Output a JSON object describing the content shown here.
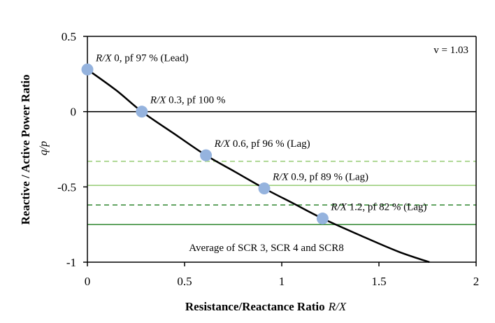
{
  "chart_data": {
    "type": "scatter",
    "xlabel": "Resistance/Reactance Ratio",
    "xlabel_var": "R/X",
    "ylabel": "Reactive / Active Power Ratio",
    "ylabel_var": "q/p",
    "xlim": [
      0,
      2
    ],
    "ylim": [
      -1,
      0.5
    ],
    "x_ticks": [
      "0",
      "0.5",
      "1",
      "1.5",
      "2"
    ],
    "y_ticks": [
      "0.5",
      "0",
      "-0.5",
      "-1"
    ],
    "grid": false,
    "voltage_label": "v = 1.03",
    "footnote": "Average of SCR 3, SCR 4 and SCR8",
    "points": [
      {
        "x": 0.0,
        "y": 0.28,
        "label_var": "R/X",
        "label_text": " 0, pf 97 % (Lead)"
      },
      {
        "x": 0.28,
        "y": 0.0,
        "label_var": "R/X",
        "label_text": " 0.3, pf 100 %"
      },
      {
        "x": 0.61,
        "y": -0.29,
        "label_var": "R/X",
        "label_text": " 0.6, pf 96 % (Lag)"
      },
      {
        "x": 0.91,
        "y": -0.51,
        "label_var": "R/X",
        "label_text": " 0.9, pf 89 % (Lag)"
      },
      {
        "x": 1.21,
        "y": -0.71,
        "label_var": "R/X",
        "label_text": " 1.2, pf 82 % (Lag)"
      }
    ],
    "curve": [
      [
        0.0,
        0.28
      ],
      [
        0.15,
        0.14
      ],
      [
        0.28,
        0.0
      ],
      [
        0.45,
        -0.15
      ],
      [
        0.61,
        -0.29
      ],
      [
        0.76,
        -0.4
      ],
      [
        0.91,
        -0.51
      ],
      [
        1.06,
        -0.61
      ],
      [
        1.21,
        -0.71
      ],
      [
        1.4,
        -0.82
      ],
      [
        1.6,
        -0.93
      ],
      [
        1.76,
        -1.0
      ]
    ],
    "reference_lines": [
      {
        "y": 0.0,
        "color": "#000000",
        "style": "solid"
      },
      {
        "y": -0.33,
        "color": "#9dcf7e",
        "style": "dashed"
      },
      {
        "y": -0.49,
        "color": "#9dcf7e",
        "style": "solid"
      },
      {
        "y": -0.62,
        "color": "#3f8f3f",
        "style": "dashed"
      },
      {
        "y": -0.75,
        "color": "#3f8f3f",
        "style": "solid"
      }
    ],
    "colors": {
      "marker": "#95b3de",
      "curve": "#000000",
      "axis": "#000000"
    }
  }
}
